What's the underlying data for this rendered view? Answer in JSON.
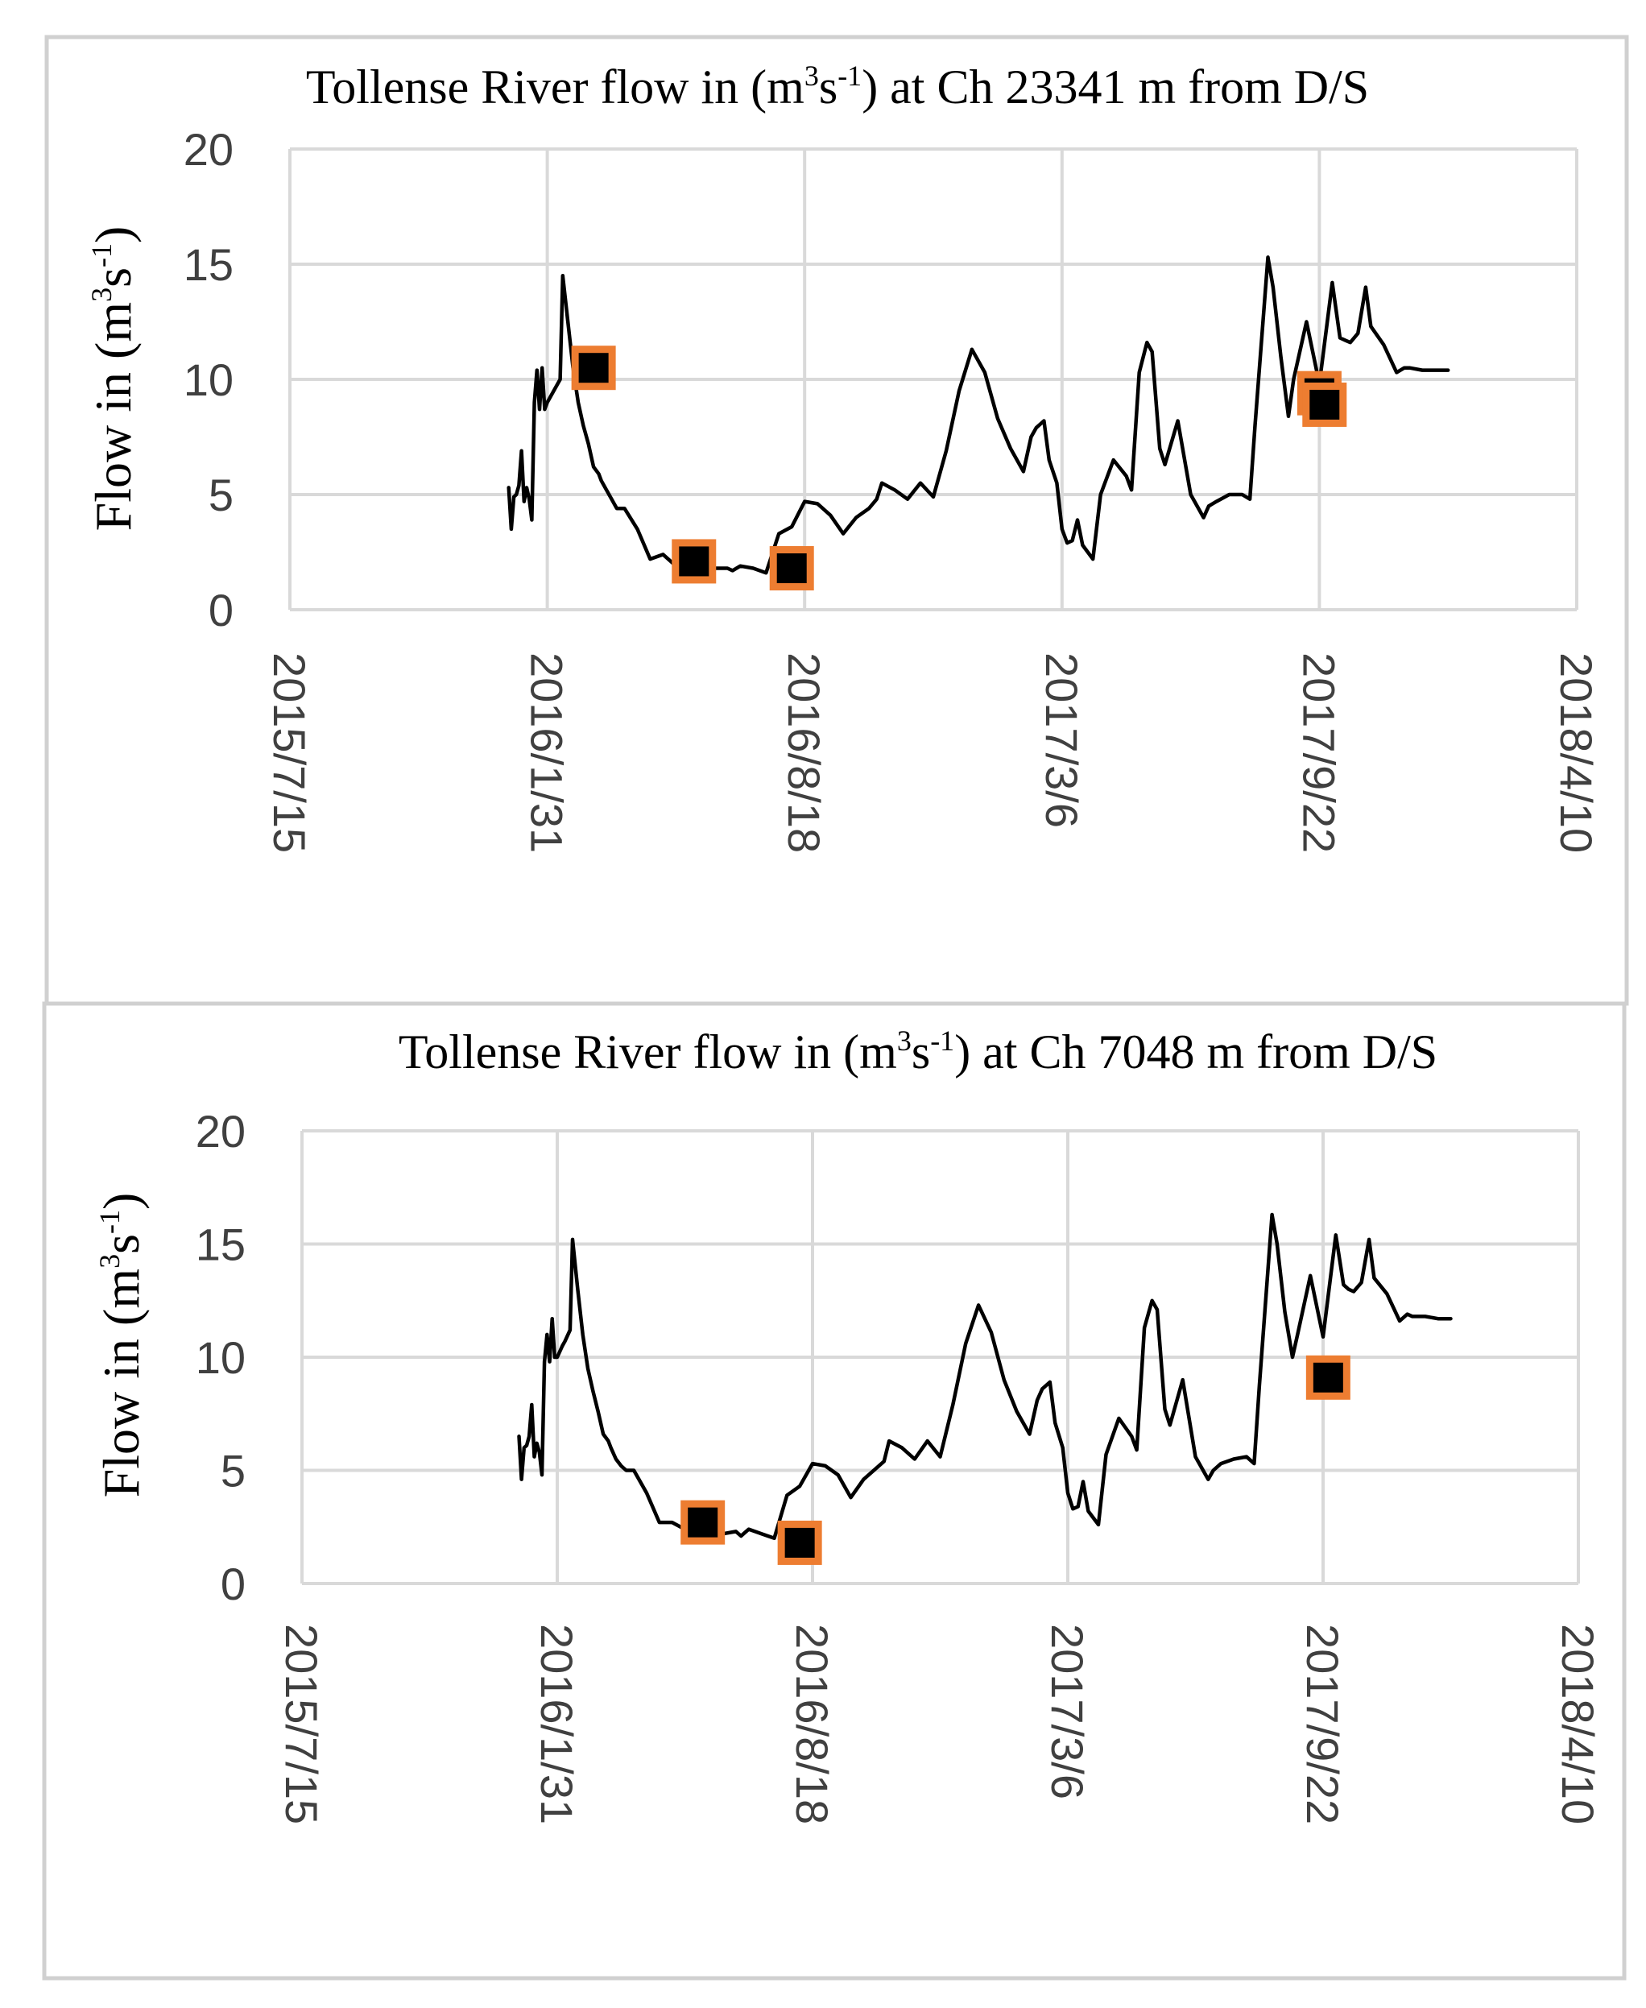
{
  "figure": {
    "colors": {
      "line": "#000000",
      "marker_fill": "#000000",
      "marker_edge": "#ED7D31",
      "grid": "#d9d9d9",
      "panel_border": "#d0d0d0"
    }
  },
  "chart_data": [
    {
      "type": "line",
      "title_parts": {
        "before": "Tollense River flow in (m",
        "sup1": "3",
        "mid": "s",
        "sup2": "-1",
        "after": ") at Ch 23341 m from D/S"
      },
      "ylabel_parts": {
        "before": "Flow in (m",
        "sup1": "3",
        "mid": "s",
        "sup2": "-1",
        "after": ")"
      },
      "xlabel": "",
      "ylim": [
        0,
        20
      ],
      "yticks": [
        "0",
        "5",
        "10",
        "15",
        "20"
      ],
      "ytick_values": [
        0,
        5,
        10,
        15,
        20
      ],
      "xticks": [
        "2015/7/15",
        "2016/1/31",
        "2016/8/18",
        "2017/3/6",
        "2017/9/22",
        "2018/4/10"
      ],
      "xlim_index": [
        0,
        5
      ],
      "grid": true,
      "series": [
        {
          "name": "Flow",
          "x": [
            0.85,
            0.86,
            0.87,
            0.88,
            0.89,
            0.9,
            0.91,
            0.92,
            0.93,
            0.94,
            0.95,
            0.96,
            0.97,
            0.98,
            0.99,
            1.0,
            1.02,
            1.03,
            1.05,
            1.06,
            1.08,
            1.1,
            1.12,
            1.14,
            1.16,
            1.18,
            1.2,
            1.21,
            1.23,
            1.25,
            1.27,
            1.3,
            1.35,
            1.4,
            1.45,
            1.5,
            1.55,
            1.6,
            1.65,
            1.7,
            1.72,
            1.75,
            1.8,
            1.85,
            1.9,
            1.95,
            2.0,
            2.05,
            2.1,
            2.15,
            2.2,
            2.25,
            2.28,
            2.3,
            2.35,
            2.4,
            2.45,
            2.5,
            2.55,
            2.6,
            2.65,
            2.7,
            2.75,
            2.8,
            2.85,
            2.88,
            2.9,
            2.93,
            2.95,
            2.98,
            3.0,
            3.02,
            3.04,
            3.06,
            3.08,
            3.1,
            3.12,
            3.15,
            3.2,
            3.25,
            3.27,
            3.3,
            3.33,
            3.35,
            3.38,
            3.4,
            3.45,
            3.5,
            3.55,
            3.57,
            3.6,
            3.65,
            3.7,
            3.73,
            3.75,
            3.8,
            3.82,
            3.85,
            3.88,
            3.9,
            3.95,
            4.0,
            4.05,
            4.08,
            4.1,
            4.12,
            4.15,
            4.18,
            4.2,
            4.25,
            4.3,
            4.33,
            4.35,
            4.4,
            4.45,
            4.5
          ],
          "values": [
            5.3,
            3.5,
            4.9,
            5.0,
            5.4,
            6.9,
            4.7,
            5.3,
            4.8,
            3.9,
            9.0,
            10.4,
            8.7,
            10.5,
            8.7,
            9.0,
            9.4,
            9.6,
            10.0,
            14.5,
            12.5,
            10.5,
            9.0,
            8.0,
            7.2,
            6.2,
            5.9,
            5.6,
            5.2,
            4.8,
            4.4,
            4.4,
            3.5,
            2.2,
            2.4,
            1.9,
            1.8,
            2.0,
            1.8,
            1.8,
            1.7,
            1.9,
            1.8,
            1.6,
            3.3,
            3.6,
            4.7,
            4.6,
            4.1,
            3.3,
            4.0,
            4.4,
            4.8,
            5.5,
            5.2,
            4.8,
            5.5,
            4.9,
            6.9,
            9.5,
            11.3,
            10.3,
            8.3,
            7.0,
            6.0,
            7.5,
            7.9,
            8.2,
            6.5,
            5.5,
            3.5,
            2.9,
            3.0,
            3.9,
            2.8,
            2.5,
            2.2,
            5.0,
            6.5,
            5.8,
            5.2,
            10.3,
            11.6,
            11.2,
            7.0,
            6.3,
            8.2,
            5.0,
            4.0,
            4.5,
            4.7,
            5.0,
            5.0,
            4.8,
            8.0,
            15.3,
            14.0,
            11.0,
            8.4,
            10.0,
            12.5,
            9.8,
            14.2,
            11.8,
            11.7,
            11.6,
            12.0,
            14.0,
            12.3,
            11.5,
            10.3,
            10.5,
            10.5,
            10.4,
            10.4,
            10.4
          ],
          "markers": [
            {
              "x": 1.18,
              "y": 10.5
            },
            {
              "x": 1.57,
              "y": 2.1
            },
            {
              "x": 1.95,
              "y": 1.8
            },
            {
              "x": 4.0,
              "y": 9.4
            },
            {
              "x": 4.02,
              "y": 8.9
            }
          ]
        }
      ]
    },
    {
      "type": "line",
      "title_parts": {
        "before": "Tollense River flow in (m",
        "sup1": "3",
        "mid": "s",
        "sup2": "-1",
        "after": ") at Ch 7048 m from D/S"
      },
      "ylabel_parts": {
        "before": "Flow in (m",
        "sup1": "3",
        "mid": "s",
        "sup2": "-1",
        "after": ")"
      },
      "xlabel": "",
      "ylim": [
        0,
        20
      ],
      "yticks": [
        "0",
        "5",
        "10",
        "15",
        "20"
      ],
      "ytick_values": [
        0,
        5,
        10,
        15,
        20
      ],
      "xticks": [
        "2015/7/15",
        "2016/1/31",
        "2016/8/18",
        "2017/3/6",
        "2017/9/22",
        "2018/4/10"
      ],
      "xlim_index": [
        0,
        5
      ],
      "grid": true,
      "series": [
        {
          "name": "Flow",
          "x": [
            0.85,
            0.86,
            0.87,
            0.88,
            0.89,
            0.9,
            0.91,
            0.92,
            0.93,
            0.94,
            0.95,
            0.96,
            0.97,
            0.98,
            0.99,
            1.0,
            1.02,
            1.03,
            1.05,
            1.06,
            1.08,
            1.1,
            1.12,
            1.14,
            1.16,
            1.18,
            1.2,
            1.21,
            1.23,
            1.25,
            1.27,
            1.3,
            1.35,
            1.4,
            1.45,
            1.5,
            1.55,
            1.6,
            1.65,
            1.7,
            1.72,
            1.75,
            1.8,
            1.85,
            1.9,
            1.95,
            2.0,
            2.05,
            2.1,
            2.15,
            2.2,
            2.25,
            2.28,
            2.3,
            2.35,
            2.4,
            2.45,
            2.5,
            2.55,
            2.6,
            2.65,
            2.7,
            2.75,
            2.8,
            2.85,
            2.88,
            2.9,
            2.93,
            2.95,
            2.98,
            3.0,
            3.02,
            3.04,
            3.06,
            3.08,
            3.1,
            3.12,
            3.15,
            3.2,
            3.25,
            3.27,
            3.3,
            3.33,
            3.35,
            3.38,
            3.4,
            3.45,
            3.5,
            3.55,
            3.57,
            3.6,
            3.65,
            3.7,
            3.73,
            3.75,
            3.8,
            3.82,
            3.85,
            3.88,
            3.9,
            3.95,
            4.0,
            4.05,
            4.08,
            4.1,
            4.12,
            4.15,
            4.18,
            4.2,
            4.25,
            4.3,
            4.33,
            4.35,
            4.4,
            4.45,
            4.5
          ],
          "values": [
            6.5,
            4.6,
            6.0,
            6.1,
            6.5,
            7.9,
            5.6,
            6.2,
            5.8,
            4.8,
            9.8,
            11.0,
            9.8,
            11.7,
            10.0,
            10.0,
            10.5,
            10.7,
            11.2,
            15.2,
            13.0,
            11.0,
            9.5,
            8.5,
            7.6,
            6.6,
            6.3,
            6.0,
            5.5,
            5.2,
            5.0,
            5.0,
            4.0,
            2.7,
            2.7,
            2.4,
            2.3,
            2.5,
            2.2,
            2.3,
            2.1,
            2.4,
            2.2,
            2.0,
            3.9,
            4.3,
            5.3,
            5.2,
            4.8,
            3.8,
            4.6,
            5.1,
            5.4,
            6.3,
            6.0,
            5.5,
            6.3,
            5.6,
            7.9,
            10.6,
            12.3,
            11.1,
            9.0,
            7.6,
            6.6,
            8.1,
            8.6,
            8.9,
            7.1,
            6.0,
            4.0,
            3.3,
            3.4,
            4.5,
            3.2,
            2.9,
            2.6,
            5.7,
            7.3,
            6.5,
            5.9,
            11.3,
            12.5,
            12.1,
            7.7,
            7.0,
            9.0,
            5.6,
            4.6,
            5.0,
            5.3,
            5.5,
            5.6,
            5.3,
            8.7,
            16.3,
            15.0,
            12.0,
            10.0,
            11.0,
            13.6,
            10.9,
            15.4,
            13.2,
            13.0,
            12.9,
            13.3,
            15.2,
            13.5,
            12.8,
            11.6,
            11.9,
            11.8,
            11.8,
            11.7,
            11.7
          ],
          "markers": [
            {
              "x": 1.57,
              "y": 2.7
            },
            {
              "x": 1.95,
              "y": 1.8
            },
            {
              "x": 4.02,
              "y": 9.1
            }
          ]
        }
      ]
    }
  ]
}
